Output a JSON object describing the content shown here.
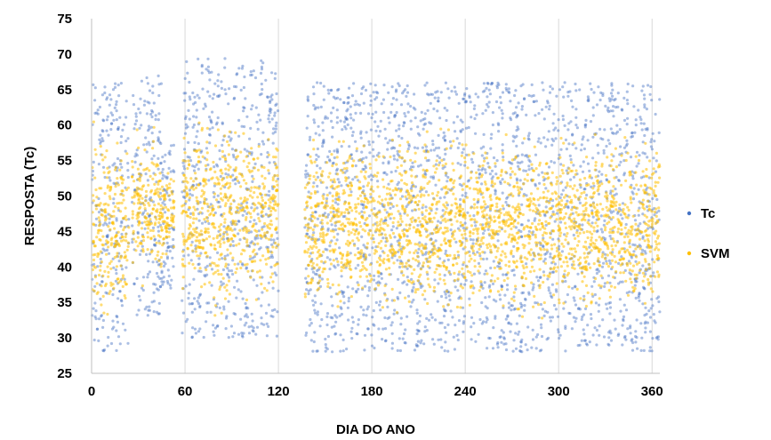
{
  "chart_data": {
    "type": "scatter",
    "xlabel": "DIA DO ANO",
    "ylabel": "RESPOSTA  (Tc)",
    "xlim": [
      0,
      365
    ],
    "ylim": [
      25,
      75
    ],
    "xticks": [
      0,
      60,
      120,
      180,
      240,
      300,
      360
    ],
    "yticks": [
      25,
      30,
      35,
      40,
      45,
      50,
      55,
      60,
      65,
      70,
      75
    ],
    "grid": "vertical",
    "legend_position": "right",
    "series": [
      {
        "name": "Tc",
        "color": "#4472C4",
        "segments": [
          {
            "x": [
              0,
              24
            ],
            "y": [
              28,
              66
            ]
          },
          {
            "x": [
              26,
              45
            ],
            "y": [
              33,
              67
            ]
          },
          {
            "x": [
              45,
              53
            ],
            "y": [
              37,
              58
            ]
          },
          {
            "x": [
              58,
              120
            ],
            "y": [
              30,
              69.5
            ]
          },
          {
            "x": [
              137,
              365
            ],
            "y": [
              28,
              66
            ]
          }
        ]
      },
      {
        "name": "SVM",
        "color": "#FFC000",
        "segments": [
          {
            "x": [
              0,
              24
            ],
            "y": [
              30,
              62
            ]
          },
          {
            "x": [
              26,
              45
            ],
            "y": [
              35,
              61
            ]
          },
          {
            "x": [
              45,
              53
            ],
            "y": [
              40,
              55
            ]
          },
          {
            "x": [
              58,
              120
            ],
            "y": [
              32,
              63
            ]
          },
          {
            "x": [
              137,
              365
            ],
            "y": [
              31,
              61
            ]
          }
        ]
      }
    ]
  }
}
